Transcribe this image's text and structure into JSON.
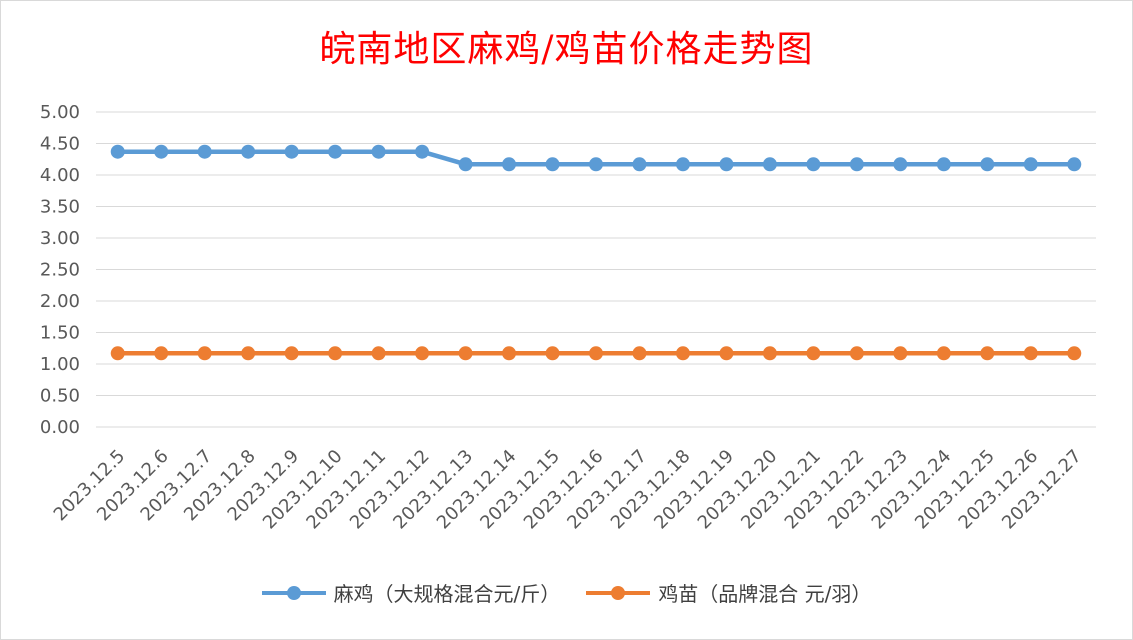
{
  "chart_data": {
    "type": "line",
    "title": "皖南地区麻鸡/鸡苗价格走势图",
    "categories": [
      "2023.12.5",
      "2023.12.6",
      "2023.12.7",
      "2023.12.8",
      "2023.12.9",
      "2023.12.10",
      "2023.12.11",
      "2023.12.12",
      "2023.12.13",
      "2023.12.14",
      "2023.12.15",
      "2023.12.16",
      "2023.12.17",
      "2023.12.18",
      "2023.12.19",
      "2023.12.20",
      "2023.12.21",
      "2023.12.22",
      "2023.12.23",
      "2023.12.24",
      "2023.12.25",
      "2023.12.26",
      "2023.12.27"
    ],
    "series": [
      {
        "name": "麻鸡（大规格混合元/斤）",
        "color": "#5b9bd5",
        "values": [
          4.37,
          4.37,
          4.37,
          4.37,
          4.37,
          4.37,
          4.37,
          4.37,
          4.17,
          4.17,
          4.17,
          4.17,
          4.17,
          4.17,
          4.17,
          4.17,
          4.17,
          4.17,
          4.17,
          4.17,
          4.17,
          4.17,
          4.17
        ]
      },
      {
        "name": "鸡苗（品牌混合 元/羽）",
        "color": "#ed7d31",
        "values": [
          1.17,
          1.17,
          1.17,
          1.17,
          1.17,
          1.17,
          1.17,
          1.17,
          1.17,
          1.17,
          1.17,
          1.17,
          1.17,
          1.17,
          1.17,
          1.17,
          1.17,
          1.17,
          1.17,
          1.17,
          1.17,
          1.17,
          1.17
        ]
      }
    ],
    "yticks": [
      "0.00",
      "0.50",
      "1.00",
      "1.50",
      "2.00",
      "2.50",
      "3.00",
      "3.50",
      "4.00",
      "4.50",
      "5.00"
    ],
    "ylim": [
      0,
      5
    ],
    "grid": true,
    "legend_position": "bottom"
  }
}
